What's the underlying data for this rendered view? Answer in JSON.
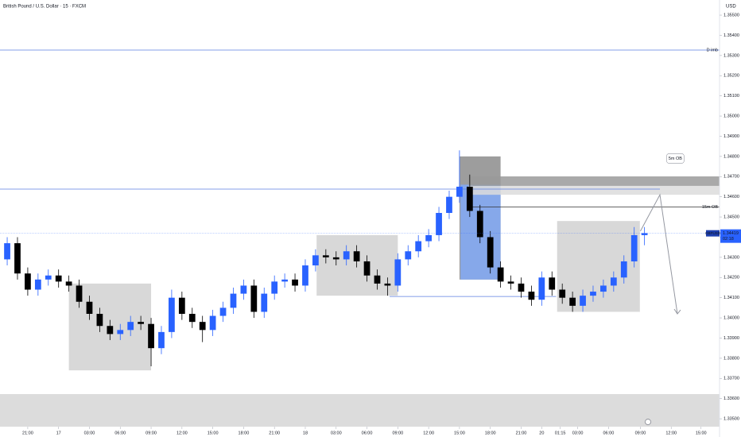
{
  "chart_data": {
    "type": "candlestick",
    "title": "British Pound / U.S. Dollar · 15 · FXCM",
    "currency": "USD",
    "up_color": "#2962ff",
    "down_color": "#000000",
    "x": [
      -3,
      -2,
      -1,
      0,
      1,
      2,
      3,
      4,
      5,
      6,
      7,
      8,
      9,
      10,
      11,
      12,
      13,
      14,
      15,
      16,
      17,
      18,
      19,
      20,
      21,
      22,
      23,
      24,
      25,
      26,
      27,
      28,
      29,
      30,
      31,
      32,
      33,
      34,
      35,
      36,
      37,
      38,
      39,
      40,
      41,
      42,
      43,
      44,
      45,
      46,
      47,
      48,
      49,
      50,
      51,
      52,
      53,
      54,
      55,
      56,
      57,
      58,
      59,
      60
    ],
    "open": [
      1.3425,
      1.3429,
      1.3437,
      1.3422,
      1.3414,
      1.3419,
      1.3421,
      1.3418,
      1.3416,
      1.3408,
      1.3402,
      1.3396,
      1.3392,
      1.3394,
      1.3398,
      1.3397,
      1.3385,
      1.3393,
      1.341,
      1.3402,
      1.3398,
      1.3394,
      1.3401,
      1.3405,
      1.3412,
      1.3416,
      1.3403,
      1.3412,
      1.3418,
      1.3419,
      1.3416,
      1.3426,
      1.3431,
      1.343,
      1.3429,
      1.3433,
      1.3428,
      1.3421,
      1.3417,
      1.3416,
      1.3429,
      1.3433,
      1.3438,
      1.3441,
      1.3452,
      1.346,
      1.3465,
      1.3453,
      1.344,
      1.3425,
      1.3418,
      1.3417,
      1.3413,
      1.3409,
      1.342,
      1.3414,
      1.341,
      1.3406,
      1.3411,
      1.3413,
      1.3416,
      1.342,
      1.3428,
      1.3441
    ],
    "high": [
      1.3432,
      1.344,
      1.344,
      1.3425,
      1.3422,
      1.3424,
      1.3424,
      1.3421,
      1.3419,
      1.3411,
      1.3405,
      1.3399,
      1.3397,
      1.3401,
      1.3401,
      1.34,
      1.3396,
      1.3414,
      1.3413,
      1.3405,
      1.3401,
      1.3404,
      1.3408,
      1.3415,
      1.3419,
      1.3419,
      1.3415,
      1.3421,
      1.3422,
      1.3422,
      1.3429,
      1.3434,
      1.3434,
      1.3433,
      1.3436,
      1.3436,
      1.3431,
      1.3424,
      1.342,
      1.3432,
      1.3436,
      1.3441,
      1.3444,
      1.3455,
      1.3463,
      1.3483,
      1.3471,
      1.3456,
      1.3443,
      1.3428,
      1.3421,
      1.342,
      1.3416,
      1.3423,
      1.3423,
      1.3417,
      1.3413,
      1.3414,
      1.3416,
      1.3419,
      1.3423,
      1.3431,
      1.3445,
      1.3445
    ],
    "low": [
      1.3422,
      1.3426,
      1.3419,
      1.3411,
      1.3411,
      1.3416,
      1.3415,
      1.3413,
      1.3405,
      1.3399,
      1.3393,
      1.3389,
      1.3389,
      1.3391,
      1.3394,
      1.3376,
      1.3382,
      1.339,
      1.3399,
      1.3395,
      1.3388,
      1.3391,
      1.3398,
      1.3402,
      1.3409,
      1.34,
      1.34,
      1.3409,
      1.3415,
      1.3413,
      1.3413,
      1.3423,
      1.3427,
      1.3426,
      1.3426,
      1.3425,
      1.3418,
      1.3414,
      1.3411,
      1.3413,
      1.3426,
      1.343,
      1.3435,
      1.3438,
      1.3449,
      1.3457,
      1.345,
      1.3437,
      1.3422,
      1.3415,
      1.3414,
      1.341,
      1.3406,
      1.3406,
      1.3411,
      1.3407,
      1.3403,
      1.3403,
      1.3408,
      1.341,
      1.3413,
      1.3417,
      1.3425,
      1.3436
    ],
    "close": [
      1.3429,
      1.3437,
      1.3422,
      1.3414,
      1.3419,
      1.3421,
      1.3418,
      1.3416,
      1.3408,
      1.3402,
      1.3396,
      1.3392,
      1.3394,
      1.3398,
      1.3397,
      1.3385,
      1.3393,
      1.341,
      1.3402,
      1.3398,
      1.3394,
      1.3401,
      1.3405,
      1.3412,
      1.3416,
      1.3403,
      1.3412,
      1.3418,
      1.3419,
      1.3416,
      1.3426,
      1.3431,
      1.343,
      1.3429,
      1.3433,
      1.3428,
      1.3421,
      1.3417,
      1.3416,
      1.3429,
      1.3433,
      1.3438,
      1.3441,
      1.3452,
      1.346,
      1.3465,
      1.3453,
      1.344,
      1.3425,
      1.3418,
      1.3417,
      1.3413,
      1.3409,
      1.342,
      1.3414,
      1.341,
      1.3406,
      1.3411,
      1.3413,
      1.3416,
      1.342,
      1.3428,
      1.3441,
      1.3442
    ],
    "xlim": [
      -2.7,
      67.3
    ],
    "ylim": [
      1.33461,
      1.35575
    ],
    "xticks": [
      {
        "value": 0,
        "label": "21:00"
      },
      {
        "value": 3,
        "label": "17"
      },
      {
        "value": 6,
        "label": "03:00"
      },
      {
        "value": 9,
        "label": "06:00"
      },
      {
        "value": 12,
        "label": "09:00"
      },
      {
        "value": 15,
        "label": "12:00"
      },
      {
        "value": 18,
        "label": "15:00"
      },
      {
        "value": 21,
        "label": "18:00"
      },
      {
        "value": 24,
        "label": "21:00"
      },
      {
        "value": 27,
        "label": "18"
      },
      {
        "value": 30,
        "label": "03:00"
      },
      {
        "value": 33,
        "label": "06:00"
      },
      {
        "value": 36,
        "label": "09:00"
      },
      {
        "value": 39,
        "label": "12:00"
      },
      {
        "value": 42,
        "label": "15:00"
      },
      {
        "value": 45,
        "label": "18:00"
      },
      {
        "value": 48,
        "label": "21:00"
      },
      {
        "value": 50,
        "label": "20"
      },
      {
        "value": 51.8,
        "label": "01:15"
      },
      {
        "value": 53.5,
        "label": "03:00"
      },
      {
        "value": 56.5,
        "label": "06:00"
      },
      {
        "value": 59.6,
        "label": "09:00"
      },
      {
        "value": 62.6,
        "label": "12:00"
      },
      {
        "value": 65.5,
        "label": "15:00"
      }
    ],
    "yticks": [
      {
        "value": 1.355,
        "label": "1.35500"
      },
      {
        "value": 1.354,
        "label": "1.35400"
      },
      {
        "value": 1.353,
        "label": "1.35300"
      },
      {
        "value": 1.352,
        "label": "1.35200"
      },
      {
        "value": 1.351,
        "label": "1.35100"
      },
      {
        "value": 1.35,
        "label": "1.35000"
      },
      {
        "value": 1.349,
        "label": "1.34900"
      },
      {
        "value": 1.348,
        "label": "1.34800"
      },
      {
        "value": 1.347,
        "label": "1.34700"
      },
      {
        "value": 1.346,
        "label": "1.34600"
      },
      {
        "value": 1.345,
        "label": "1.34500"
      },
      {
        "value": 1.344,
        "label": "1.34400"
      },
      {
        "value": 1.343,
        "label": "1.34300"
      },
      {
        "value": 1.342,
        "label": "1.34200"
      },
      {
        "value": 1.341,
        "label": "1.34100"
      },
      {
        "value": 1.34,
        "label": "1.34000"
      },
      {
        "value": 1.339,
        "label": "1.33900"
      },
      {
        "value": 1.338,
        "label": "1.33800"
      },
      {
        "value": 1.337,
        "label": "1.33700"
      },
      {
        "value": 1.336,
        "label": "1.33600"
      },
      {
        "value": 1.335,
        "label": "1.33500"
      }
    ],
    "zones": [
      {
        "x": [
          4.0,
          12.0
        ],
        "y": [
          1.3374,
          1.3417
        ],
        "color": "#d1d1d1"
      },
      {
        "x": [
          28.1,
          36.0
        ],
        "y": [
          1.3411,
          1.3441
        ],
        "color": "#d1d1d1"
      },
      {
        "x": [
          51.5,
          59.55
        ],
        "y": [
          1.3403,
          1.3448
        ],
        "color": "#d1d1d1"
      },
      {
        "x": [
          42.0,
          46.0
        ],
        "y": [
          1.3419,
          1.348
        ],
        "color": "#8c8c8c"
      },
      {
        "x": [
          42.1,
          46.0
        ],
        "y": [
          1.3419,
          1.3466
        ],
        "color": "#82aaf8"
      },
      {
        "x": [
          42.9,
          67.3
        ],
        "y": [
          1.34654,
          1.34701
        ],
        "color": "#9a9a9a"
      },
      {
        "x": [
          42.9,
          67.3
        ],
        "y": [
          1.3461,
          1.34654
        ],
        "color": "#dcdcdc"
      }
    ],
    "levels": [
      {
        "label": "D imb",
        "price": 1.35327,
        "x": [
          -2.7,
          67.3
        ],
        "color": "#5b7fe0"
      },
      {
        "price": 1.34638,
        "x": [
          -2.7,
          61.5
        ],
        "color": "#5b7fe0"
      },
      {
        "label": "15m OB",
        "price": 1.3455,
        "x": [
          42.9,
          67.3
        ],
        "color": "#333333"
      },
      {
        "price": 1.34106,
        "x": [
          35.2,
          51.4
        ],
        "color": "#5b7fe0"
      }
    ],
    "projection": {
      "x": [
        59.6,
        61.5,
        63.2
      ],
      "y": [
        1.3443,
        1.3461,
        1.3402
      ]
    },
    "callouts": [
      {
        "text": "5m OB",
        "x": 63.0,
        "y": 1.3479
      }
    ],
    "last": {
      "symbol": "GBPUSD",
      "price": 1.34419,
      "countdown": "02:18"
    }
  }
}
